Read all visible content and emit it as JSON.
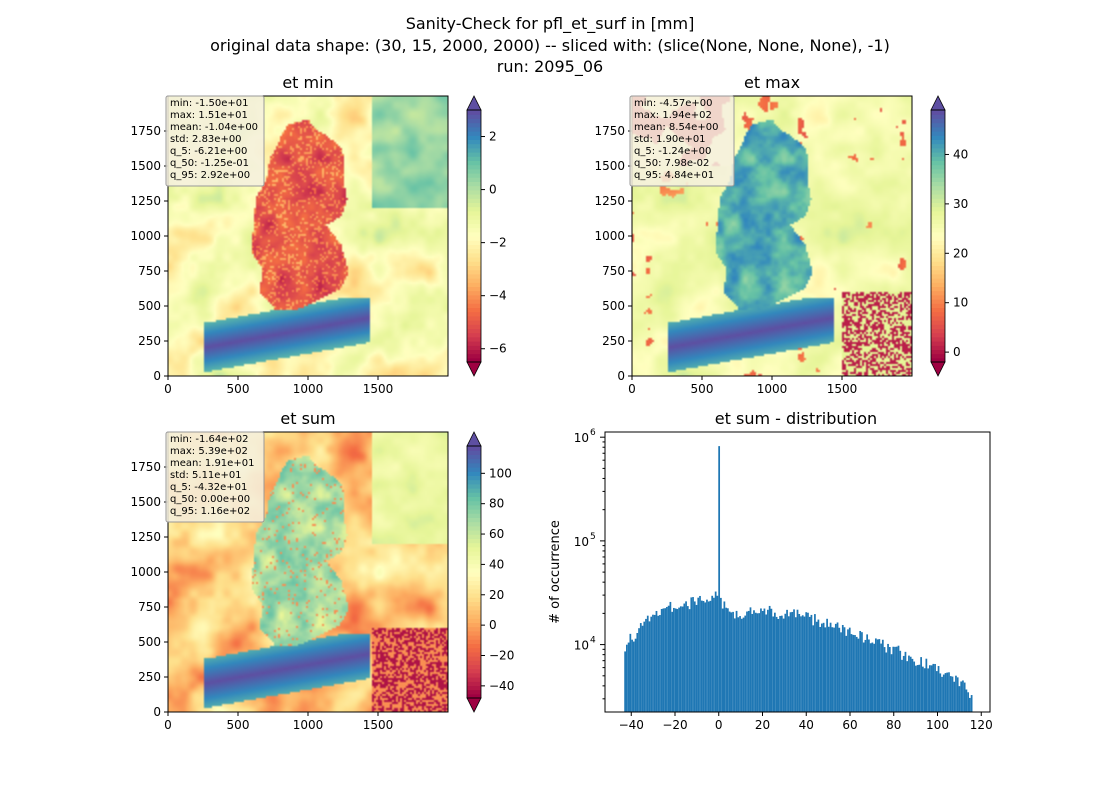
{
  "figure": {
    "title_line1": "Sanity-Check for pfl_et_surf in [mm]",
    "title_line2": "original data shape: (30, 15, 2000, 2000) -- sliced with: (slice(None, None, None), -1)",
    "title_line3": "run: 2095_06"
  },
  "colormap": "Spectral",
  "chart_data": [
    {
      "type": "heatmap",
      "title": "et min",
      "x_ticks": [
        0,
        500,
        1000,
        1500
      ],
      "y_ticks": [
        0,
        250,
        500,
        750,
        1000,
        1250,
        1500,
        1750
      ],
      "xlim": [
        0,
        2000
      ],
      "ylim": [
        0,
        2000
      ],
      "colorbar": {
        "vmin": -6.5,
        "vmax": 3.0,
        "ticks": [
          -6,
          -4,
          -2,
          0,
          2
        ],
        "extend": "both"
      },
      "stats": [
        "min: -1.50e+01",
        "max: 1.51e+01",
        "mean: -1.04e+00",
        "std: 2.83e+00",
        "q_5: -6.21e+00",
        "q_50: -1.25e-01",
        "q_95: 2.92e+00"
      ]
    },
    {
      "type": "heatmap",
      "title": "et max",
      "x_ticks": [
        0,
        500,
        1000,
        1500
      ],
      "y_ticks": [
        0,
        250,
        500,
        750,
        1000,
        1250,
        1500,
        1750
      ],
      "xlim": [
        0,
        2000
      ],
      "ylim": [
        0,
        2000
      ],
      "colorbar": {
        "vmin": -2.0,
        "vmax": 49.0,
        "ticks": [
          0,
          10,
          20,
          30,
          40
        ],
        "extend": "both"
      },
      "stats": [
        "min: -4.57e+00",
        "max: 1.94e+02",
        "mean: 8.54e+00",
        "std: 1.90e+01",
        "q_5: -1.24e+00",
        "q_50: 7.98e-02",
        "q_95: 4.84e+01"
      ]
    },
    {
      "type": "heatmap",
      "title": "et sum",
      "x_ticks": [
        0,
        500,
        1000,
        1500
      ],
      "y_ticks": [
        0,
        250,
        500,
        750,
        1000,
        1250,
        1500,
        1750
      ],
      "xlim": [
        0,
        2000
      ],
      "ylim": [
        0,
        2000
      ],
      "colorbar": {
        "vmin": -48.0,
        "vmax": 118.0,
        "ticks": [
          -40,
          -20,
          0,
          20,
          40,
          60,
          80,
          100
        ],
        "extend": "both"
      },
      "stats": [
        "min: -1.64e+02",
        "max: 5.39e+02",
        "mean: 1.91e+01",
        "std: 5.11e+01",
        "q_5: -4.32e+01",
        "q_50: 0.00e+00",
        "q_95: 1.16e+02"
      ]
    },
    {
      "type": "bar",
      "title": "et sum - distribution",
      "ylabel": "# of occurrence",
      "xlabel": "",
      "yscale": "log",
      "xlim": [
        -52,
        124
      ],
      "ylim_log10": [
        3.35,
        6.05
      ],
      "x_ticks": [
        -40,
        -20,
        0,
        20,
        40,
        60,
        80,
        100,
        120
      ],
      "y_ticks": [
        {
          "exp": 4,
          "label": "10",
          "sup": "4"
        },
        {
          "exp": 5,
          "label": "10",
          "sup": "5"
        },
        {
          "exp": 6,
          "label": "10",
          "sup": "6"
        }
      ],
      "bar_color": "#1f77b4",
      "bin_range": [
        -43.2,
        116.0
      ],
      "bins": 200,
      "spike": {
        "x": 0,
        "count": 820000
      },
      "profile": [
        {
          "x": -43.2,
          "count": 9000
        },
        {
          "x": -40,
          "count": 11500
        },
        {
          "x": -35,
          "count": 15000
        },
        {
          "x": -30,
          "count": 19000
        },
        {
          "x": -25,
          "count": 22000
        },
        {
          "x": -20,
          "count": 23500
        },
        {
          "x": -15,
          "count": 24500
        },
        {
          "x": -10,
          "count": 26000
        },
        {
          "x": -5,
          "count": 27500
        },
        {
          "x": -2,
          "count": 30000
        },
        {
          "x": 0,
          "count": 27000
        },
        {
          "x": 5,
          "count": 20500
        },
        {
          "x": 10,
          "count": 20000
        },
        {
          "x": 15,
          "count": 20500
        },
        {
          "x": 20,
          "count": 21500
        },
        {
          "x": 25,
          "count": 20500
        },
        {
          "x": 30,
          "count": 20000
        },
        {
          "x": 40,
          "count": 18500
        },
        {
          "x": 50,
          "count": 16000
        },
        {
          "x": 60,
          "count": 13500
        },
        {
          "x": 70,
          "count": 11000
        },
        {
          "x": 80,
          "count": 9000
        },
        {
          "x": 90,
          "count": 7200
        },
        {
          "x": 100,
          "count": 5800
        },
        {
          "x": 110,
          "count": 4600
        },
        {
          "x": 116,
          "count": 3000
        }
      ]
    }
  ]
}
